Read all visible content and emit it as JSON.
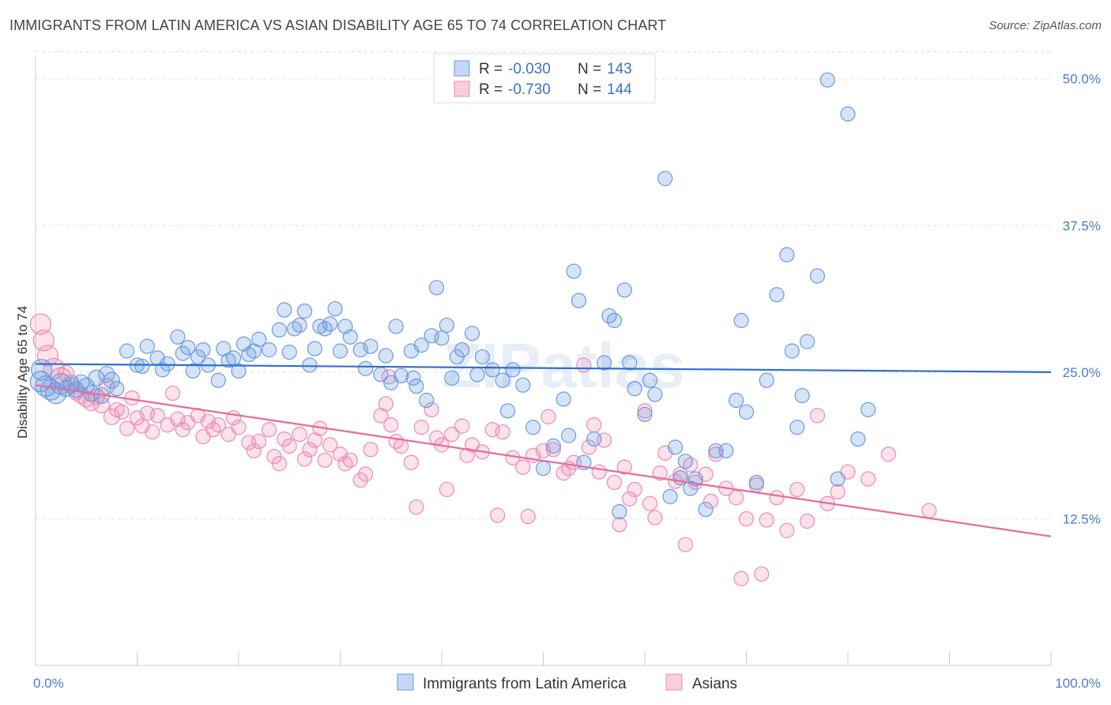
{
  "title": "IMMIGRANTS FROM LATIN AMERICA VS ASIAN DISABILITY AGE 65 TO 74 CORRELATION CHART",
  "source": "Source: ZipAtlas.com",
  "watermark": "ZIPatlas",
  "colors": {
    "blue": "#6a9ae0",
    "blue_line": "#2f6fd0",
    "pink": "#f08ab0",
    "pink_line": "#e86a98",
    "axis_text": "#4a7cc8"
  },
  "chart_data": {
    "type": "scatter",
    "ylabel": "Disability Age 65 to 74",
    "xlim": [
      0,
      100
    ],
    "ylim": [
      0,
      52
    ],
    "x_tick_labels": [
      "0.0%",
      "100.0%"
    ],
    "y_ticks": [
      {
        "value": 12.5,
        "label": "12.5%"
      },
      {
        "value": 25.0,
        "label": "25.0%"
      },
      {
        "value": 37.5,
        "label": "37.5%"
      },
      {
        "value": 50.0,
        "label": "50.0%"
      }
    ],
    "grid": "horizontal dashed",
    "legend": {
      "position": "top-center",
      "entries": [
        {
          "r_label": "R =",
          "r_value": "-0.030",
          "n_label": "N =",
          "n_value": "143"
        },
        {
          "r_label": "R =",
          "r_value": "-0.730",
          "n_label": "N =",
          "n_value": "144"
        }
      ]
    },
    "series": [
      {
        "name": "Immigrants from Latin America",
        "trend": {
          "x": [
            0,
            100
          ],
          "y": [
            25.7,
            25.0
          ]
        },
        "points": [
          [
            0.5,
            24.2
          ],
          [
            0.6,
            25.2
          ],
          [
            1,
            23.8
          ],
          [
            1.5,
            23.5
          ],
          [
            2,
            23.2
          ],
          [
            2.5,
            24.0
          ],
          [
            3,
            23.6
          ],
          [
            3.5,
            23.9
          ],
          [
            4,
            23.5
          ],
          [
            4.5,
            24.1
          ],
          [
            5,
            23.8
          ],
          [
            5.5,
            23.2
          ],
          [
            6,
            24.5
          ],
          [
            6.5,
            23.0
          ],
          [
            7,
            24.8
          ],
          [
            7.5,
            24.3
          ],
          [
            8,
            23.6
          ],
          [
            9,
            26.8
          ],
          [
            10,
            25.6
          ],
          [
            10.5,
            25.5
          ],
          [
            11,
            27.2
          ],
          [
            12,
            26.2
          ],
          [
            12.5,
            25.2
          ],
          [
            13,
            25.7
          ],
          [
            14,
            28.0
          ],
          [
            14.5,
            26.6
          ],
          [
            15,
            27.1
          ],
          [
            15.5,
            25.1
          ],
          [
            16,
            26.3
          ],
          [
            16.5,
            26.9
          ],
          [
            17,
            25.6
          ],
          [
            18,
            24.3
          ],
          [
            18.5,
            27.0
          ],
          [
            19,
            26.0
          ],
          [
            19.5,
            26.2
          ],
          [
            20,
            25.1
          ],
          [
            20.5,
            27.4
          ],
          [
            21,
            26.5
          ],
          [
            21.5,
            26.8
          ],
          [
            22,
            27.8
          ],
          [
            23,
            26.9
          ],
          [
            24,
            28.6
          ],
          [
            24.5,
            30.3
          ],
          [
            25,
            26.7
          ],
          [
            25.5,
            28.7
          ],
          [
            26,
            29.0
          ],
          [
            26.5,
            30.2
          ],
          [
            27,
            25.6
          ],
          [
            27.5,
            27.0
          ],
          [
            28,
            28.9
          ],
          [
            28.5,
            28.7
          ],
          [
            29,
            29.1
          ],
          [
            29.5,
            30.4
          ],
          [
            30,
            26.8
          ],
          [
            30.5,
            28.9
          ],
          [
            31,
            28.0
          ],
          [
            32,
            26.9
          ],
          [
            32.5,
            25.3
          ],
          [
            33,
            27.2
          ],
          [
            34,
            24.8
          ],
          [
            34.5,
            26.4
          ],
          [
            35,
            24.1
          ],
          [
            35.5,
            28.9
          ],
          [
            36,
            24.7
          ],
          [
            37,
            26.8
          ],
          [
            37.5,
            23.8
          ],
          [
            38,
            27.3
          ],
          [
            38.5,
            22.6
          ],
          [
            39,
            28.1
          ],
          [
            39.5,
            32.2
          ],
          [
            40,
            27.9
          ],
          [
            40.5,
            29.0
          ],
          [
            41,
            24.5
          ],
          [
            41.5,
            26.3
          ],
          [
            42,
            26.9
          ],
          [
            43,
            28.3
          ],
          [
            43.5,
            24.8
          ],
          [
            44,
            26.3
          ],
          [
            45,
            25.2
          ],
          [
            46,
            24.3
          ],
          [
            47,
            25.2
          ],
          [
            48,
            23.9
          ],
          [
            49,
            20.3
          ],
          [
            50,
            16.8
          ],
          [
            51,
            18.7
          ],
          [
            52,
            22.7
          ],
          [
            53,
            33.6
          ],
          [
            53.5,
            31.1
          ],
          [
            54,
            17.3
          ],
          [
            55,
            19.3
          ],
          [
            56,
            25.8
          ],
          [
            56.5,
            29.8
          ],
          [
            57,
            29.4
          ],
          [
            57.5,
            13.1
          ],
          [
            58,
            32.0
          ],
          [
            58.5,
            25.8
          ],
          [
            59,
            23.6
          ],
          [
            60,
            21.4
          ],
          [
            60.5,
            24.3
          ],
          [
            61,
            23.1
          ],
          [
            62,
            41.5
          ],
          [
            62.5,
            14.4
          ],
          [
            63,
            18.6
          ],
          [
            63.5,
            16.0
          ],
          [
            64,
            17.4
          ],
          [
            64.5,
            15.1
          ],
          [
            65,
            15.9
          ],
          [
            66,
            13.3
          ],
          [
            67,
            18.3
          ],
          [
            68,
            18.3
          ],
          [
            69,
            22.6
          ],
          [
            69.5,
            29.4
          ],
          [
            70,
            21.6
          ],
          [
            71,
            15.6
          ],
          [
            72,
            24.3
          ],
          [
            73,
            31.6
          ],
          [
            74,
            35.0
          ],
          [
            74.5,
            26.8
          ],
          [
            75,
            20.3
          ],
          [
            75.5,
            23.0
          ],
          [
            76,
            27.6
          ],
          [
            77,
            33.2
          ],
          [
            78,
            49.9
          ],
          [
            79,
            15.9
          ],
          [
            80,
            47.0
          ],
          [
            81,
            19.3
          ],
          [
            82,
            21.8
          ],
          [
            46.5,
            21.7
          ],
          [
            52.5,
            19.6
          ],
          [
            37.2,
            24.5
          ]
        ]
      },
      {
        "name": "Asians",
        "trend": {
          "x": [
            0,
            100
          ],
          "y": [
            23.9,
            11.0
          ]
        },
        "points": [
          [
            0.5,
            29.1
          ],
          [
            0.8,
            27.7
          ],
          [
            1.2,
            26.4
          ],
          [
            1.8,
            25.3
          ],
          [
            2.5,
            24.5
          ],
          [
            3,
            24.9
          ],
          [
            3.5,
            24.1
          ],
          [
            4,
            23.3
          ],
          [
            4.5,
            23.0
          ],
          [
            5,
            22.7
          ],
          [
            5.5,
            22.4
          ],
          [
            6,
            22.9
          ],
          [
            6.5,
            22.2
          ],
          [
            7,
            23.8
          ],
          [
            7.5,
            21.2
          ],
          [
            8,
            21.8
          ],
          [
            8.5,
            21.6
          ],
          [
            9,
            20.2
          ],
          [
            9.5,
            22.8
          ],
          [
            10,
            21.1
          ],
          [
            10.5,
            20.4
          ],
          [
            11,
            21.5
          ],
          [
            11.5,
            19.9
          ],
          [
            12,
            21.3
          ],
          [
            13,
            20.5
          ],
          [
            13.5,
            23.2
          ],
          [
            14,
            21.0
          ],
          [
            14.5,
            20.1
          ],
          [
            15,
            20.7
          ],
          [
            16,
            21.3
          ],
          [
            16.5,
            19.5
          ],
          [
            17,
            20.8
          ],
          [
            17.5,
            20.1
          ],
          [
            18,
            20.5
          ],
          [
            19,
            19.7
          ],
          [
            19.5,
            21.1
          ],
          [
            20,
            20.3
          ],
          [
            21,
            19.0
          ],
          [
            21.5,
            18.3
          ],
          [
            22,
            19.1
          ],
          [
            23,
            20.1
          ],
          [
            23.5,
            17.8
          ],
          [
            24,
            17.2
          ],
          [
            24.5,
            19.3
          ],
          [
            25,
            18.7
          ],
          [
            26,
            19.7
          ],
          [
            26.5,
            17.6
          ],
          [
            27,
            18.4
          ],
          [
            27.5,
            19.2
          ],
          [
            28,
            20.2
          ],
          [
            28.5,
            17.5
          ],
          [
            29,
            18.8
          ],
          [
            30,
            18.0
          ],
          [
            30.5,
            17.2
          ],
          [
            31,
            17.5
          ],
          [
            32,
            15.8
          ],
          [
            32.5,
            16.3
          ],
          [
            33,
            18.4
          ],
          [
            34,
            21.3
          ],
          [
            34.5,
            22.3
          ],
          [
            35,
            20.5
          ],
          [
            35.5,
            19.1
          ],
          [
            36,
            18.7
          ],
          [
            37,
            17.3
          ],
          [
            37.5,
            13.5
          ],
          [
            38,
            20.3
          ],
          [
            39,
            21.8
          ],
          [
            39.5,
            19.4
          ],
          [
            40,
            18.8
          ],
          [
            40.5,
            15.0
          ],
          [
            41,
            19.7
          ],
          [
            42,
            20.4
          ],
          [
            42.5,
            17.9
          ],
          [
            43,
            18.8
          ],
          [
            44,
            18.2
          ],
          [
            45,
            20.1
          ],
          [
            45.5,
            12.8
          ],
          [
            46,
            19.9
          ],
          [
            47,
            17.7
          ],
          [
            48,
            16.9
          ],
          [
            48.5,
            12.7
          ],
          [
            49,
            17.9
          ],
          [
            50,
            18.3
          ],
          [
            50.5,
            21.2
          ],
          [
            51,
            18.4
          ],
          [
            52,
            16.4
          ],
          [
            52.5,
            16.8
          ],
          [
            53,
            17.3
          ],
          [
            54,
            25.6
          ],
          [
            54.5,
            18.6
          ],
          [
            55,
            20.5
          ],
          [
            55.5,
            16.5
          ],
          [
            56,
            19.2
          ],
          [
            57,
            15.6
          ],
          [
            57.5,
            12.0
          ],
          [
            58,
            16.9
          ],
          [
            58.5,
            14.2
          ],
          [
            59,
            15.0
          ],
          [
            60,
            21.7
          ],
          [
            60.5,
            13.8
          ],
          [
            61,
            12.6
          ],
          [
            61.5,
            16.4
          ],
          [
            62,
            18.1
          ],
          [
            63,
            15.7
          ],
          [
            63.5,
            16.3
          ],
          [
            64,
            10.3
          ],
          [
            64.5,
            17.1
          ],
          [
            65,
            15.6
          ],
          [
            66,
            16.3
          ],
          [
            66.5,
            14.0
          ],
          [
            67,
            18.0
          ],
          [
            68,
            15.1
          ],
          [
            69,
            14.3
          ],
          [
            69.5,
            7.4
          ],
          [
            70,
            12.5
          ],
          [
            71,
            15.4
          ],
          [
            71.5,
            7.8
          ],
          [
            72,
            12.4
          ],
          [
            73,
            14.3
          ],
          [
            74,
            11.5
          ],
          [
            75,
            15.0
          ],
          [
            76,
            12.3
          ],
          [
            77,
            21.3
          ],
          [
            78,
            13.8
          ],
          [
            79,
            14.8
          ],
          [
            80,
            16.5
          ],
          [
            82,
            15.9
          ],
          [
            84,
            18.0
          ],
          [
            88,
            13.2
          ],
          [
            34.8,
            24.6
          ]
        ]
      }
    ],
    "bottom_legend": [
      "Immigrants from Latin America",
      "Asians"
    ]
  }
}
